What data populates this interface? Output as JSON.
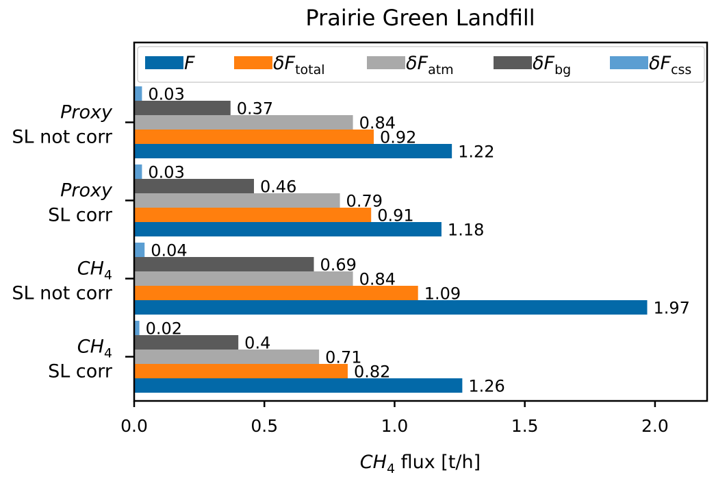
{
  "chart_data": {
    "type": "bar",
    "orientation": "horizontal",
    "title": "Prairie Green Landfill",
    "xlabel": {
      "sym": "CH",
      "sub": "4",
      "rest": " flux [t/h]"
    },
    "xlim": [
      0,
      2.2
    ],
    "xticks": [
      "0.0",
      "0.5",
      "1.0",
      "1.5",
      "2.0"
    ],
    "xtick_values": [
      0,
      0.5,
      1.0,
      1.5,
      2.0
    ],
    "legend_placement": "top",
    "grid": false,
    "categories": [
      {
        "line1": "Proxy",
        "line1_sub": "",
        "line2": "SL not corr"
      },
      {
        "line1": "Proxy",
        "line1_sub": "",
        "line2": "SL corr"
      },
      {
        "line1": "CH",
        "line1_sub": "4",
        "line2": "SL not corr"
      },
      {
        "line1": "CH",
        "line1_sub": "4",
        "line2": "SL corr"
      }
    ],
    "series": [
      {
        "name": "F",
        "name_sub": "",
        "color": "#0369a8",
        "values": [
          1.22,
          1.18,
          1.97,
          1.26
        ],
        "labels": [
          "1.22",
          "1.18",
          "1.97",
          "1.26"
        ]
      },
      {
        "name": "δF",
        "name_sub": "total",
        "color": "#ff7f0e",
        "values": [
          0.92,
          0.91,
          1.09,
          0.82
        ],
        "labels": [
          "0.92",
          "0.91",
          "1.09",
          "0.82"
        ]
      },
      {
        "name": "δF",
        "name_sub": "atm",
        "color": "#a9a9a9",
        "values": [
          0.84,
          0.79,
          0.84,
          0.71
        ],
        "labels": [
          "0.84",
          "0.79",
          "0.84",
          "0.71"
        ]
      },
      {
        "name": "δF",
        "name_sub": "bg",
        "color": "#5a5a5a",
        "values": [
          0.37,
          0.46,
          0.69,
          0.4
        ],
        "labels": [
          "0.37",
          "0.46",
          "0.69",
          "0.4"
        ]
      },
      {
        "name": "δF",
        "name_sub": "css",
        "color": "#5b9ed2",
        "values": [
          0.03,
          0.03,
          0.04,
          0.02
        ],
        "labels": [
          "0.03",
          "0.03",
          "0.04",
          "0.02"
        ]
      }
    ]
  }
}
